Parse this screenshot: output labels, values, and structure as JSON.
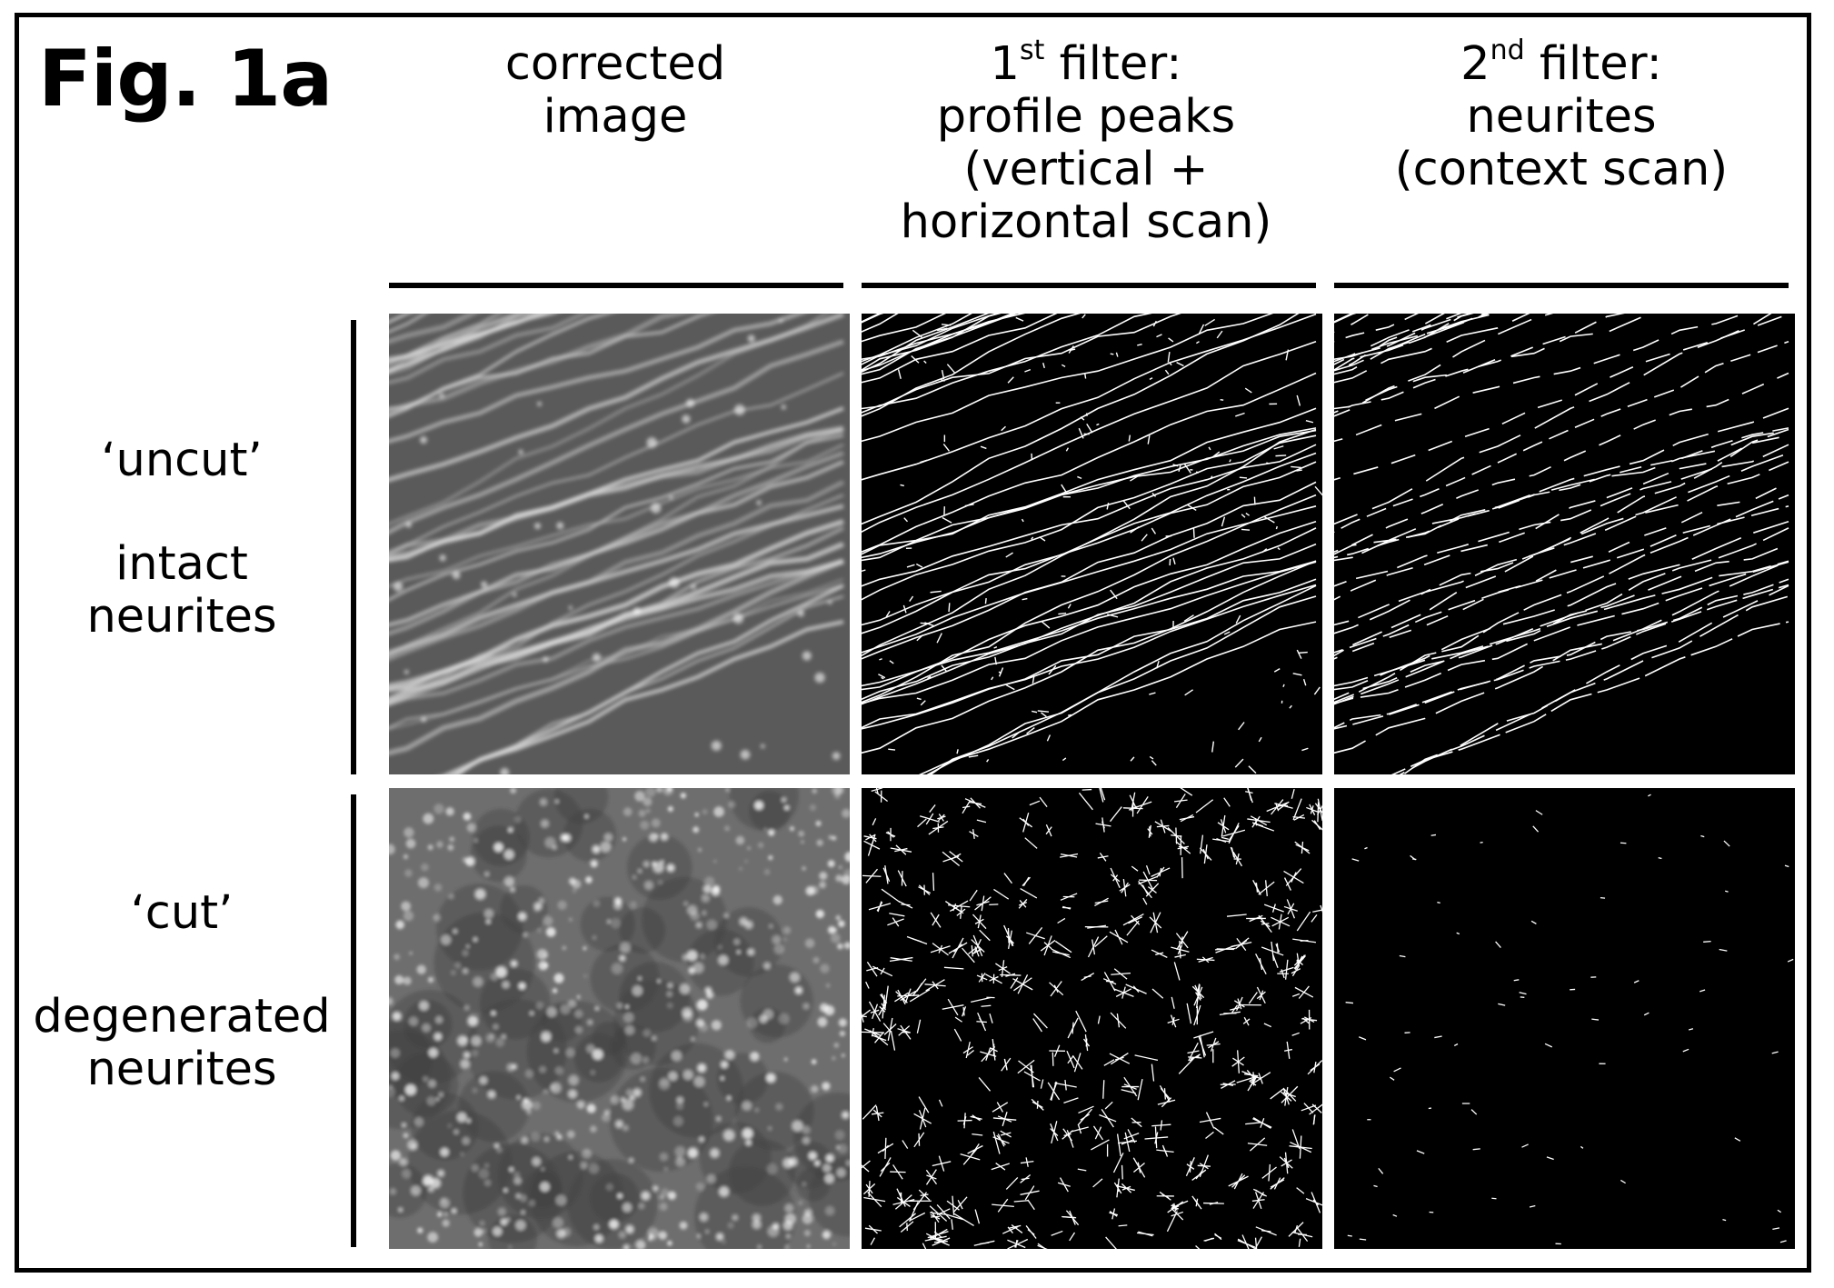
{
  "figure": {
    "label": "Fig. 1a"
  },
  "columns": [
    {
      "lines": [
        "corrected",
        "image"
      ]
    },
    {
      "number": "1",
      "superscript": "st",
      "suffix": " filter:",
      "lines": [
        "profile peaks",
        "(vertical +",
        "horizontal scan)"
      ]
    },
    {
      "number": "2",
      "superscript": "nd",
      "suffix": " filter:",
      "lines": [
        "neurites",
        "(context scan)"
      ]
    }
  ],
  "rows": [
    {
      "quoted": "‘uncut’",
      "lines": [
        "intact",
        "neurites"
      ]
    },
    {
      "quoted": "‘cut’",
      "lines": [
        "degenerated",
        "neurites"
      ]
    }
  ],
  "panels": {
    "uncut_corrected": "corrected-image-intact",
    "uncut_filter1": "profile-peaks-intact",
    "uncut_filter2": "context-scan-intact",
    "cut_corrected": "corrected-image-degenerated",
    "cut_filter1": "profile-peaks-degenerated",
    "cut_filter2": "context-scan-degenerated"
  },
  "colors": {
    "frame": "#000000",
    "background": "#ffffff",
    "panel_black": "#000000",
    "panel_gray": "#6e6e6e",
    "trace": "#ffffff"
  }
}
